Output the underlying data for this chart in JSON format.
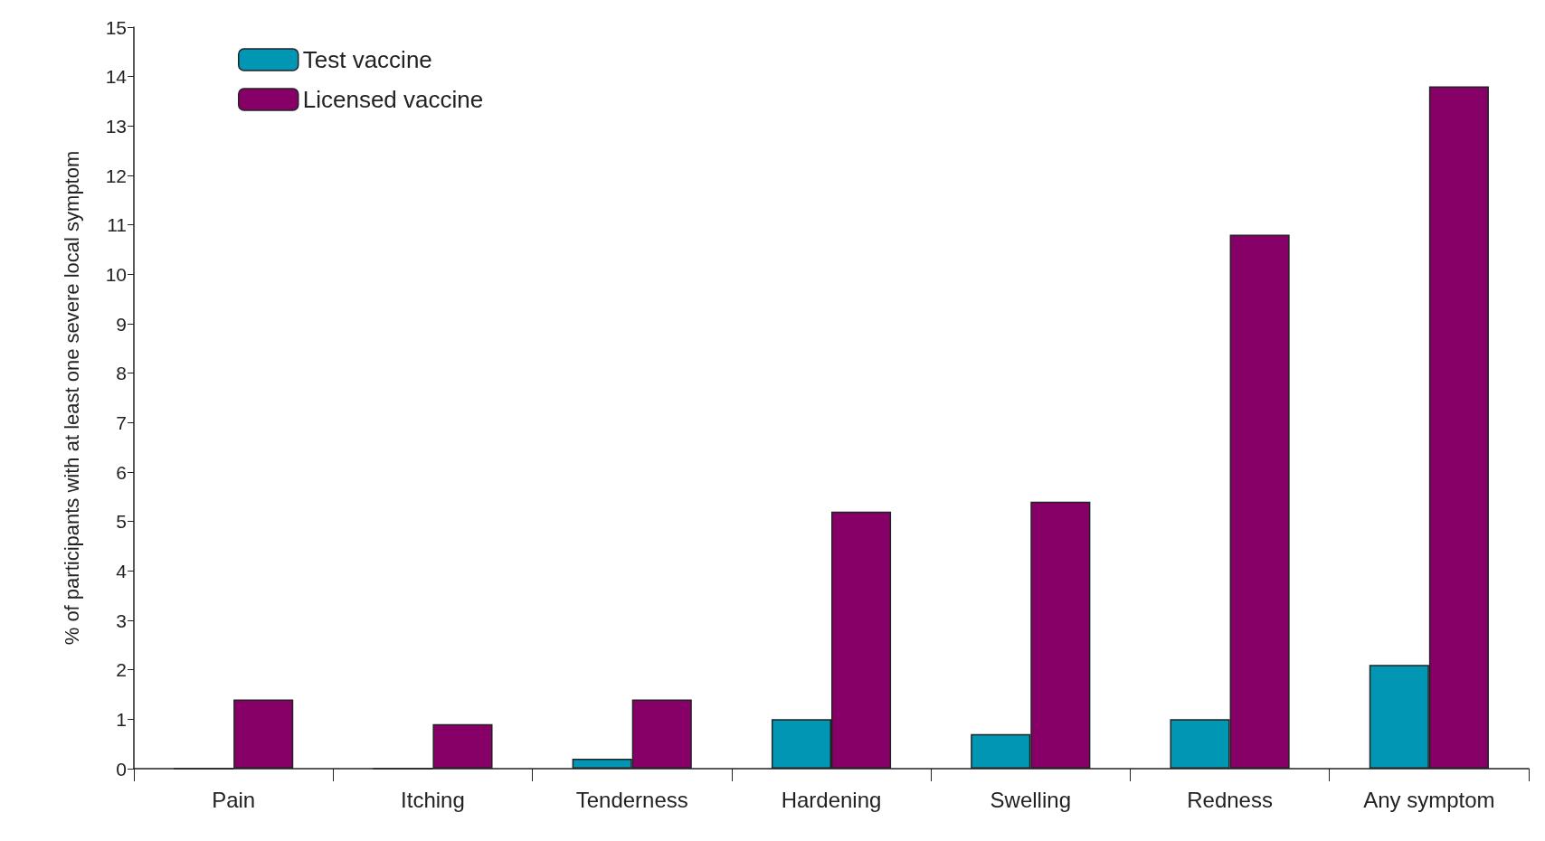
{
  "chart_data": {
    "type": "bar",
    "ylabel": "% of participants with at least one severe local symptom",
    "categories": [
      "Pain",
      "Itching",
      "Tenderness",
      "Hardening",
      "Swelling",
      "Redness",
      "Any symptom"
    ],
    "series": [
      {
        "name": "Test vaccine",
        "color": "#0096b4",
        "values": [
          0,
          0,
          0.2,
          1.0,
          0.7,
          1.0,
          2.1
        ]
      },
      {
        "name": "Licensed vaccine",
        "color": "#860068",
        "values": [
          1.4,
          0.9,
          1.4,
          5.2,
          5.4,
          10.8,
          13.8
        ]
      }
    ],
    "ylim": [
      0,
      15
    ],
    "yticks": [
      0,
      1,
      2,
      3,
      4,
      5,
      6,
      7,
      8,
      9,
      10,
      11,
      12,
      13,
      14,
      15
    ],
    "grid": false,
    "legend": "top left"
  }
}
